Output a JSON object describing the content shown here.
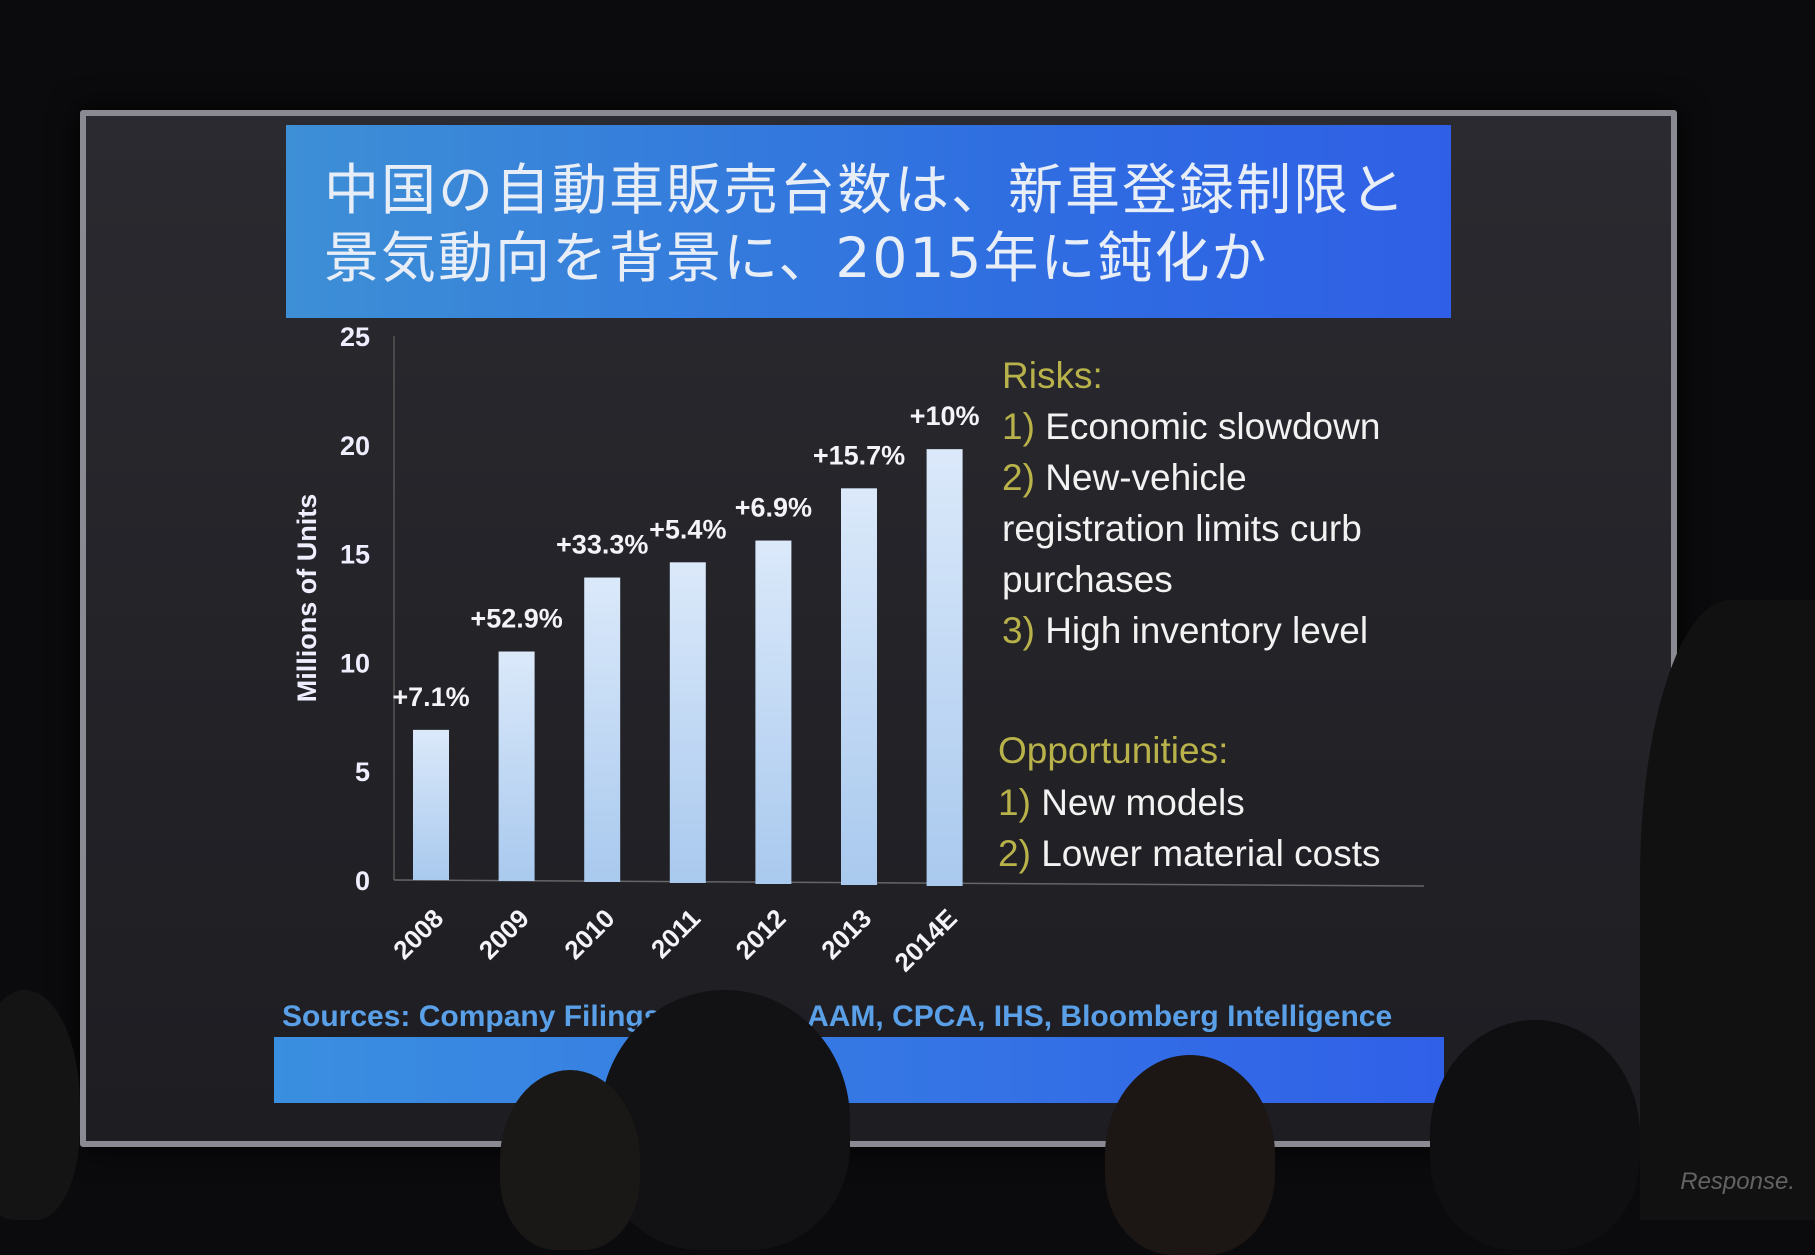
{
  "slide": {
    "title_line1": "中国の自動車販売台数は、新車登録制限と",
    "title_line2": "景気動向を背景に、2015年に鈍化か",
    "risks_heading": "Risks:",
    "risks": [
      {
        "num": "1)",
        "text": "Economic slowdown"
      },
      {
        "num": "2)",
        "text": "New-vehicle"
      },
      {
        "num": "",
        "text": "registration limits curb"
      },
      {
        "num": "",
        "text": "purchases"
      },
      {
        "num": "3)",
        "text": "High inventory  level"
      }
    ],
    "opportunities_heading": "Opportunities:",
    "opportunities": [
      {
        "num": "1)",
        "text": "New models"
      },
      {
        "num": "2)",
        "text": "Lower material costs"
      }
    ],
    "sources_visible_start": "Sources: Company Filings, ",
    "sources_visible_end": "AAM, CPCA, IHS, Bloomberg Intelligence",
    "watermark": "Response."
  },
  "colors": {
    "bar": "#bcd8f6",
    "title_bg": "#2f6fe0",
    "accent_heading": "#b9b24a",
    "sources": "#5aa0e8"
  },
  "chart_data": {
    "type": "bar",
    "categories": [
      "2008",
      "2009",
      "2010",
      "2011",
      "2012",
      "2013",
      "2014E"
    ],
    "values": [
      6.9,
      10.5,
      13.9,
      14.6,
      15.6,
      18.0,
      19.8
    ],
    "data_labels": [
      "+7.1%",
      "+52.9%",
      "+33.3%",
      "+5.4%",
      "+6.9%",
      "+15.7%",
      "+10%"
    ],
    "ylabel": "Millions of Units",
    "xlabel": "",
    "ylim": [
      0,
      25
    ],
    "yticks": [
      "0",
      "5",
      "10",
      "15",
      "20",
      "25"
    ],
    "grid": false,
    "legend": "none"
  }
}
